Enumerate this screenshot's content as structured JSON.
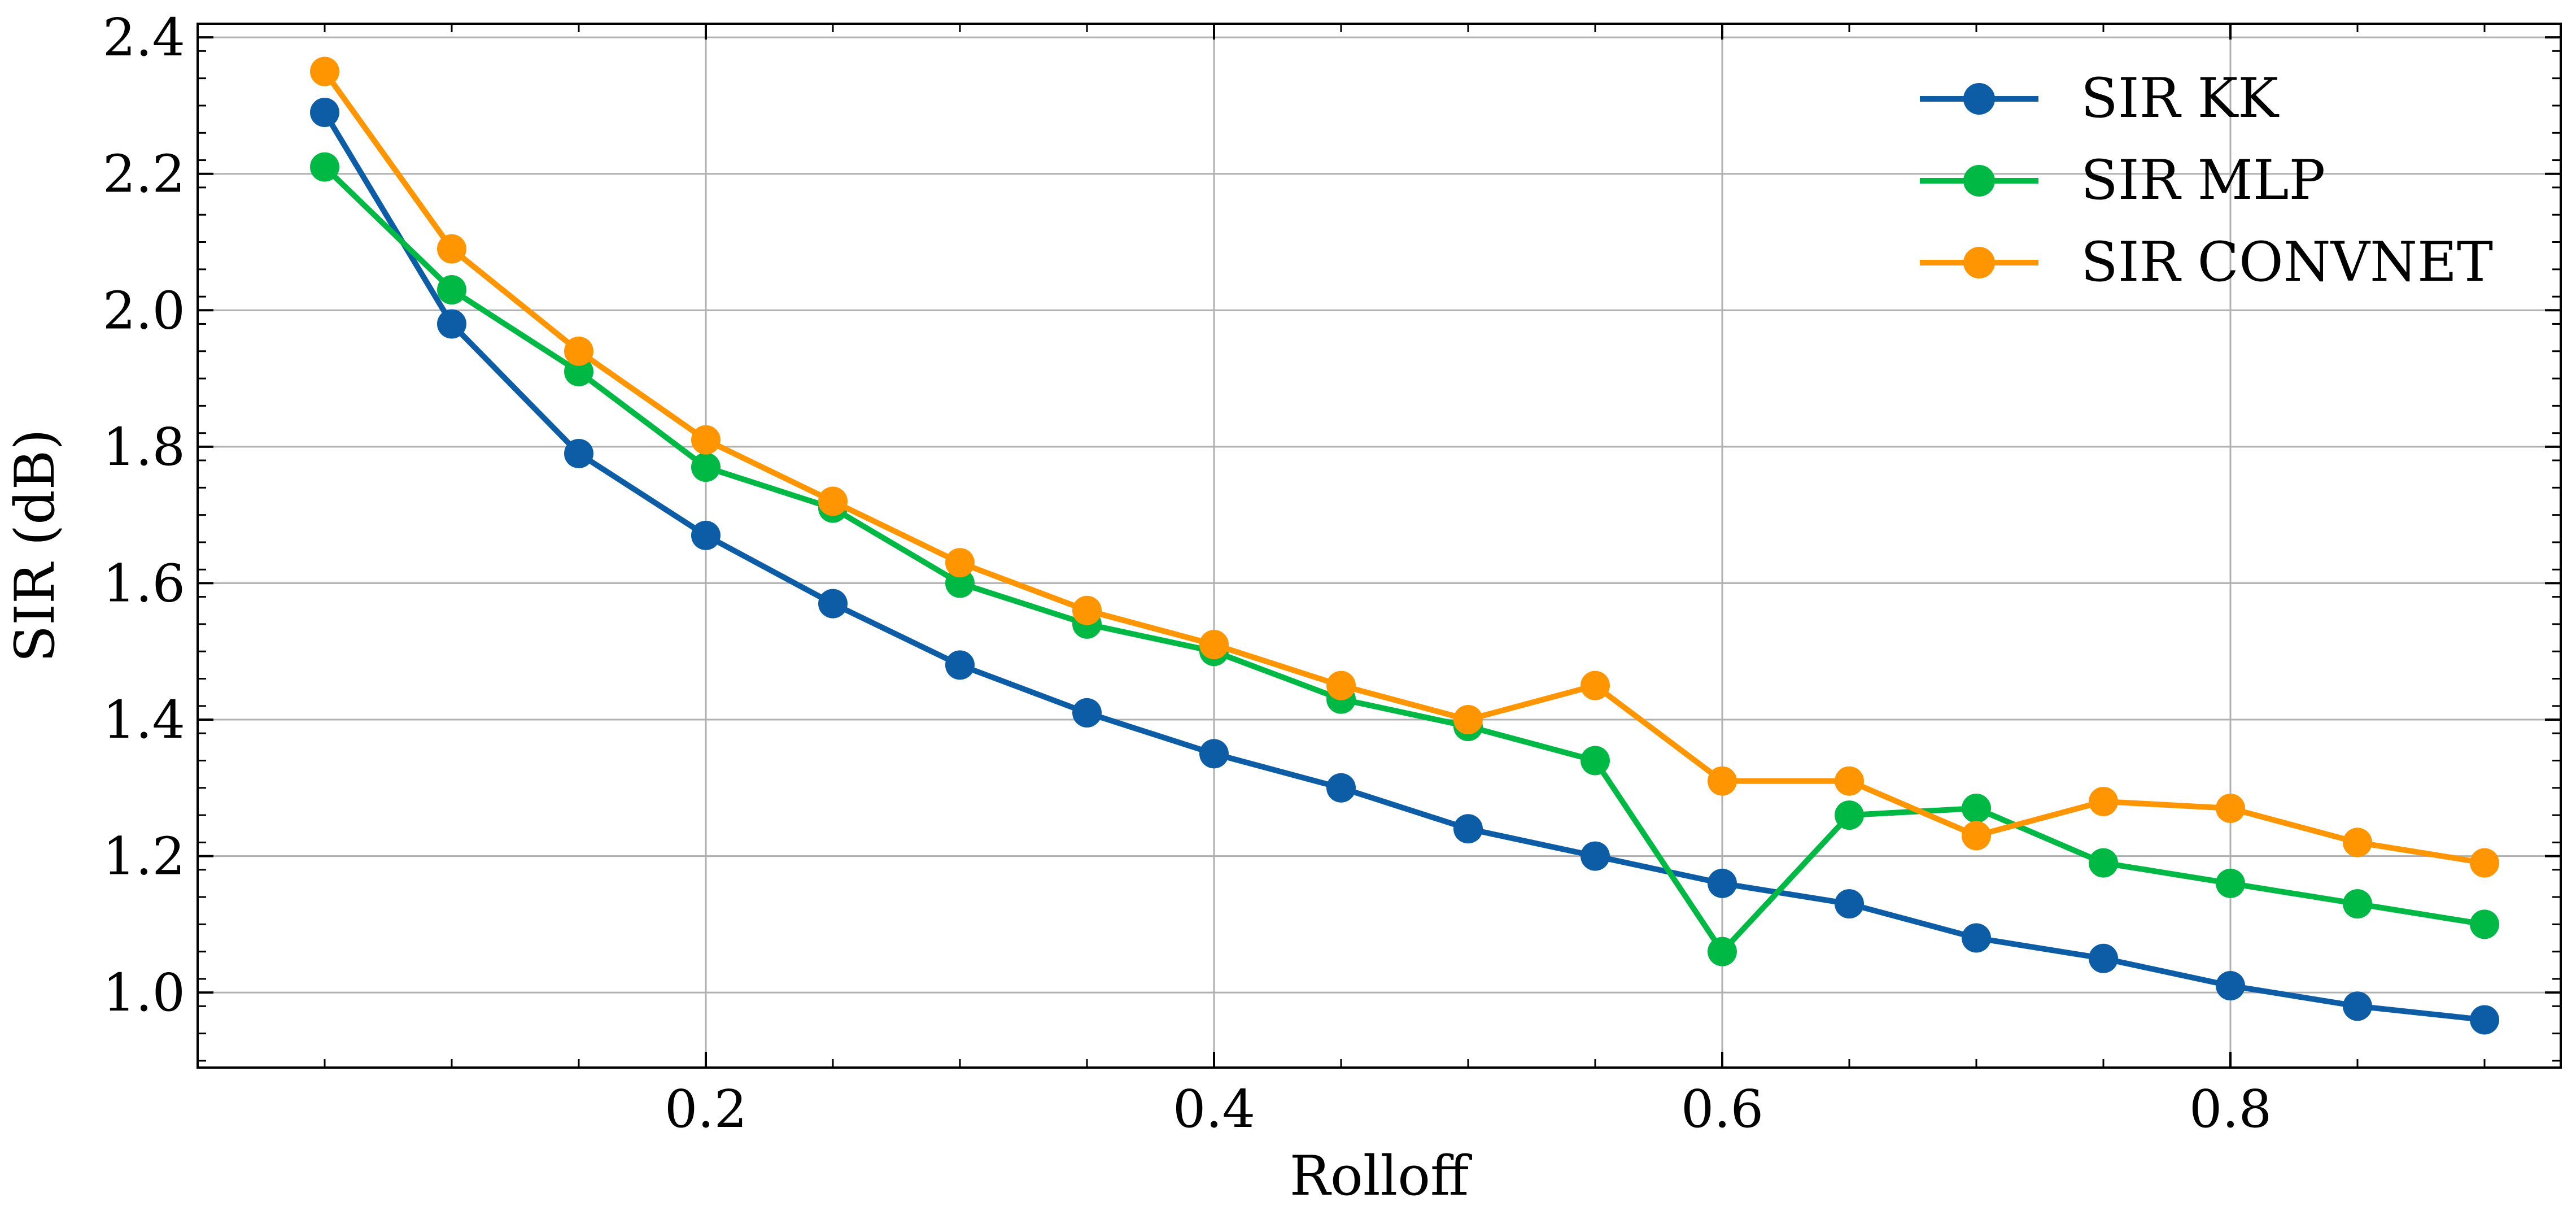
{
  "chart_data": {
    "type": "line",
    "xlabel": "Rolloff",
    "ylabel": "SIR (dB)",
    "xlim": [
      0.0,
      0.93
    ],
    "ylim": [
      0.89,
      2.42
    ],
    "x_ticks": [
      0.2,
      0.4,
      0.6,
      0.8
    ],
    "x_tick_labels": [
      "0.2",
      "0.4",
      "0.6",
      "0.8"
    ],
    "y_ticks": [
      1.0,
      1.2,
      1.4,
      1.6,
      1.8,
      2.0,
      2.2,
      2.4
    ],
    "y_tick_labels": [
      "1.0",
      "1.2",
      "1.4",
      "1.6",
      "1.8",
      "2.0",
      "2.2",
      "2.4"
    ],
    "grid": true,
    "legend_position": "top-right",
    "x": [
      0.05,
      0.1,
      0.15,
      0.2,
      0.25,
      0.3,
      0.35,
      0.4,
      0.45,
      0.5,
      0.55,
      0.6,
      0.65,
      0.7,
      0.75,
      0.8,
      0.85,
      0.9
    ],
    "series": [
      {
        "name": "SIR KK",
        "color": "#0c5da5",
        "values": [
          2.29,
          1.98,
          1.79,
          1.67,
          1.57,
          1.48,
          1.41,
          1.35,
          1.3,
          1.24,
          1.2,
          1.16,
          1.13,
          1.08,
          1.05,
          1.01,
          0.98,
          0.96
        ]
      },
      {
        "name": "SIR MLP",
        "color": "#00b945",
        "values": [
          2.21,
          2.03,
          1.91,
          1.77,
          1.71,
          1.6,
          1.54,
          1.5,
          1.43,
          1.39,
          1.34,
          1.06,
          1.26,
          1.27,
          1.19,
          1.16,
          1.13,
          1.1
        ]
      },
      {
        "name": "SIR CONVNET",
        "color": "#ff9500",
        "values": [
          2.35,
          2.09,
          1.94,
          1.81,
          1.72,
          1.63,
          1.56,
          1.51,
          1.45,
          1.4,
          1.45,
          1.31,
          1.31,
          1.23,
          1.28,
          1.27,
          1.22,
          1.19
        ]
      }
    ]
  }
}
